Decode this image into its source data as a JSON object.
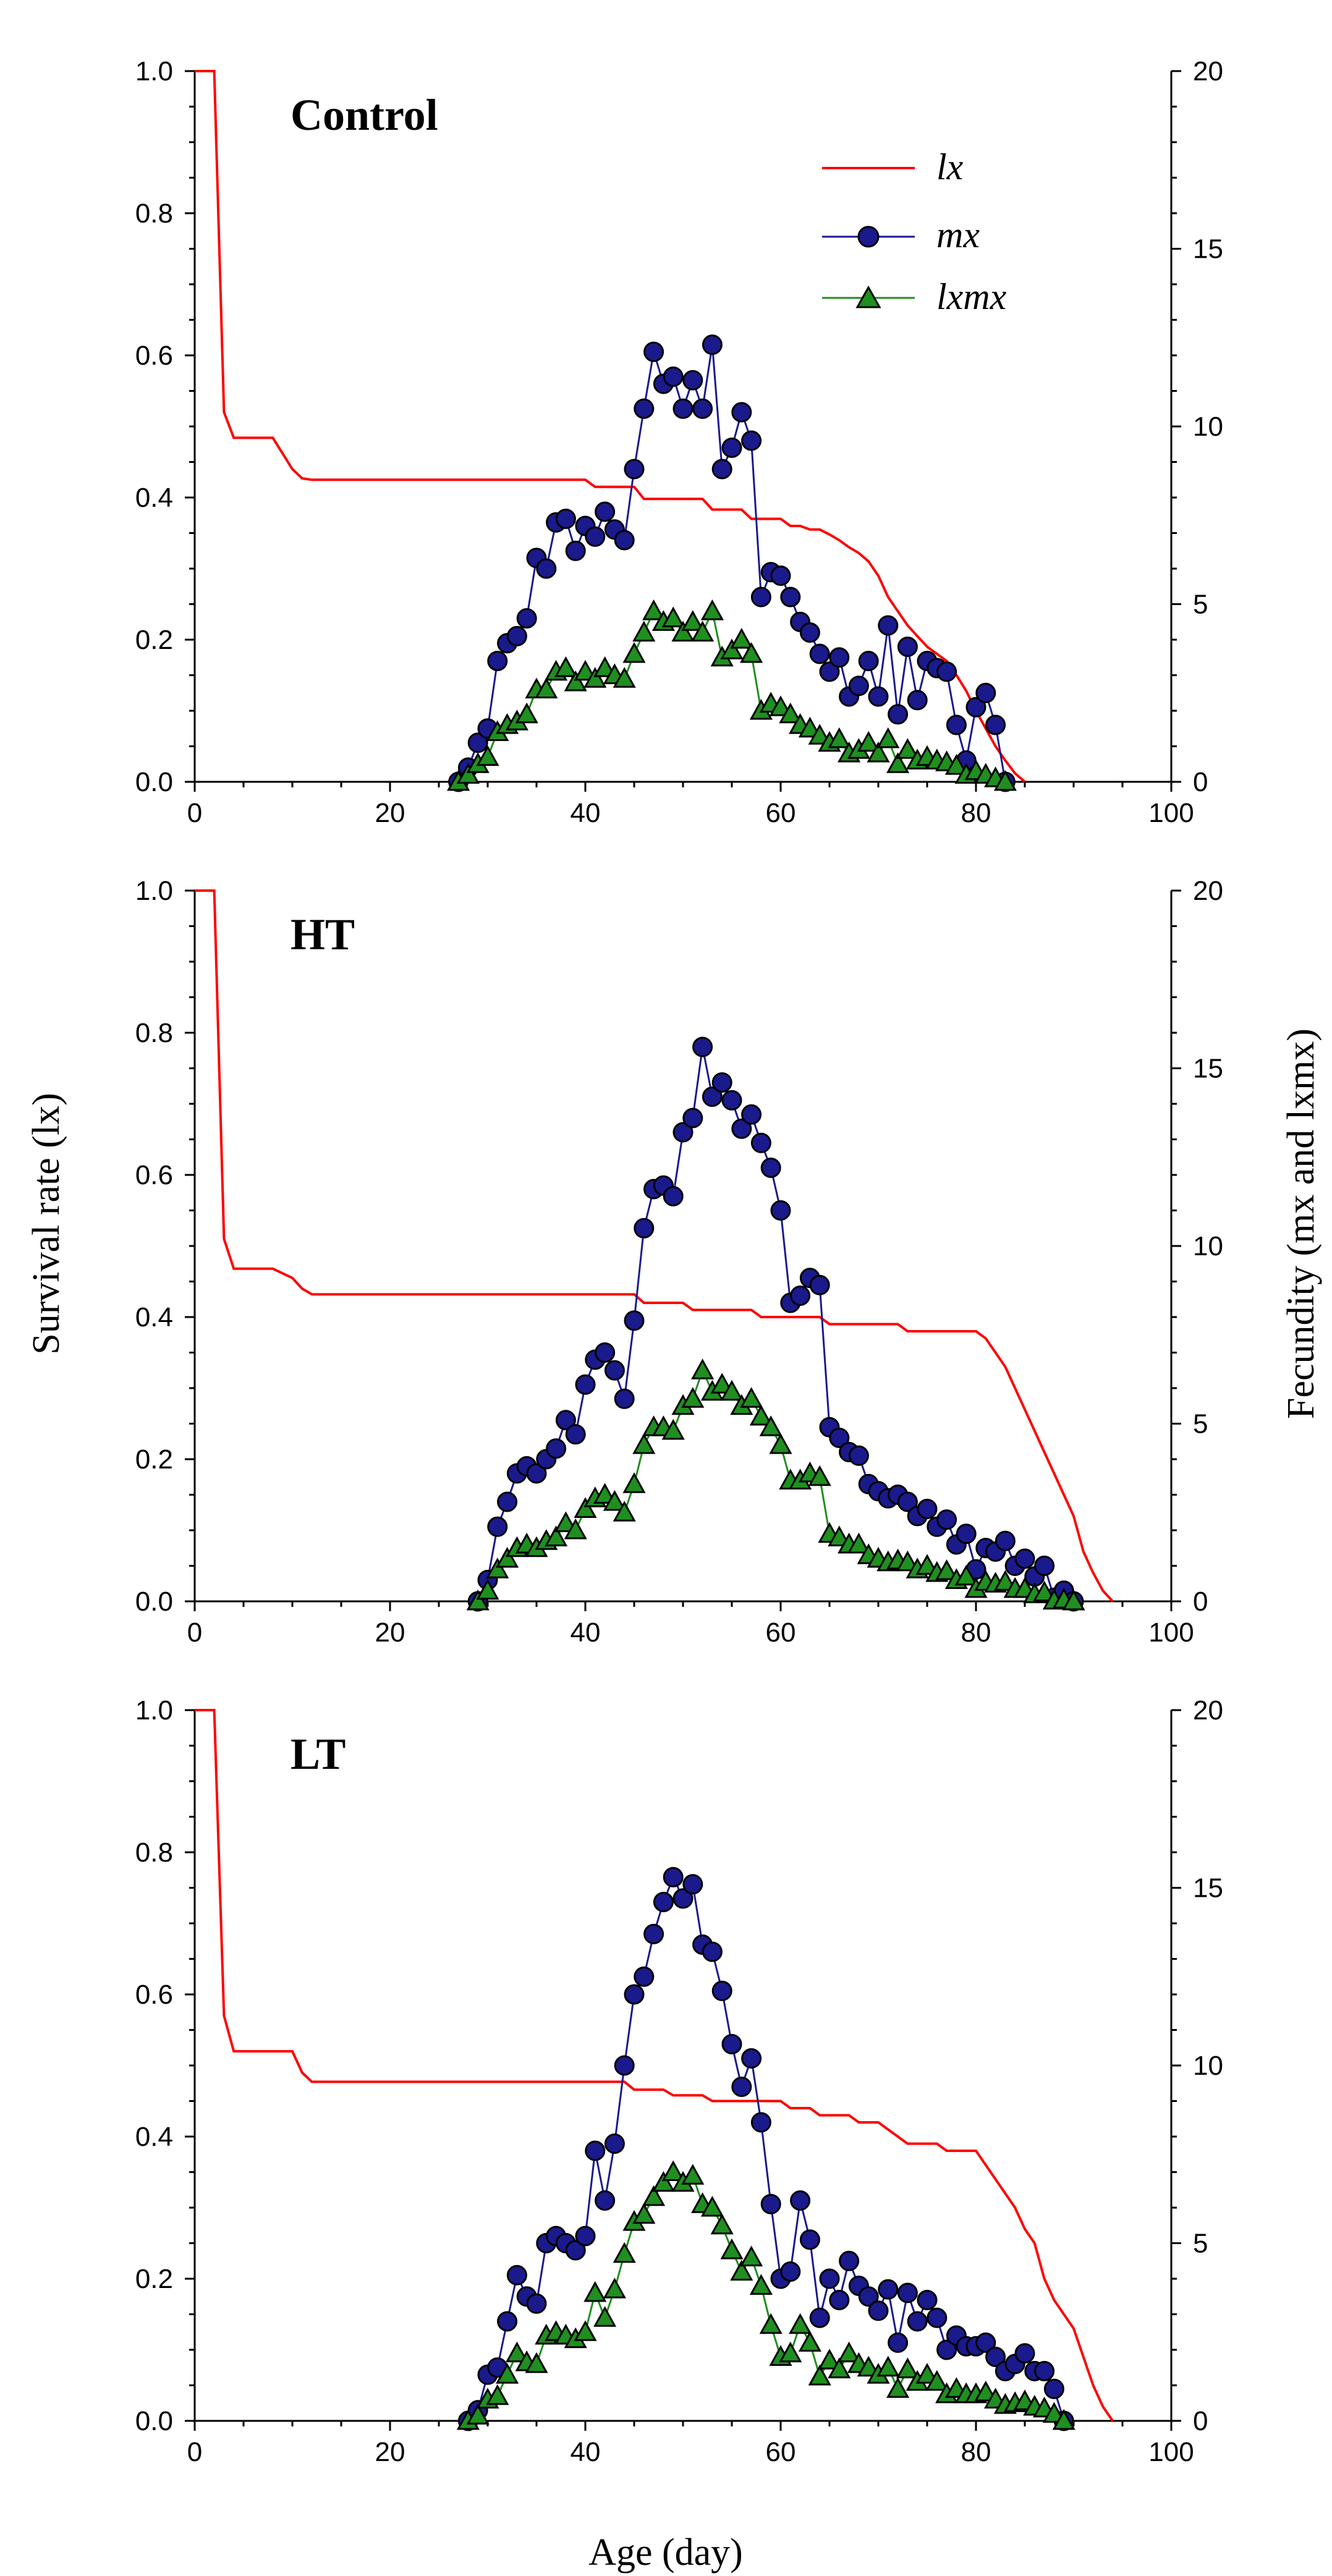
{
  "colors": {
    "lx": "#ff0000",
    "mx": "#1a1a8c",
    "lxmx": "#1f8f1f",
    "marker_edge": "#000000"
  },
  "axis_titles": {
    "x": "Age (day)",
    "y_left": "Survival rate (lx)",
    "y_right": "Fecundity (mx and lxmx)"
  },
  "legend": {
    "lx": "lx",
    "mx": "mx",
    "lxmx": "lxmx",
    "placement": "top-right of Control panel"
  },
  "chart_data": [
    {
      "type": "line",
      "title": "Control",
      "xlim": [
        0,
        100
      ],
      "xticks": [
        0,
        20,
        40,
        60,
        80,
        100
      ],
      "ylim_left": [
        0,
        1.0
      ],
      "yticks_left": [
        "0.0",
        "0.2",
        "0.4",
        "0.6",
        "0.8",
        "1.0"
      ],
      "ylim_right": [
        0,
        20
      ],
      "yticks_right": [
        "0",
        "5",
        "10",
        "15",
        "20"
      ],
      "lx": {
        "x": [
          0,
          2,
          3,
          4,
          8,
          10,
          11,
          12,
          40,
          41,
          45,
          46,
          52,
          53,
          56,
          57,
          60,
          61,
          62,
          63,
          64,
          65,
          66,
          67,
          68,
          69,
          70,
          71,
          72,
          73,
          74,
          75,
          76,
          77,
          78,
          79,
          80,
          81,
          82,
          83,
          84,
          85
        ],
        "y": [
          1.0,
          1.0,
          0.52,
          0.484,
          0.484,
          0.44,
          0.427,
          0.425,
          0.425,
          0.415,
          0.415,
          0.398,
          0.398,
          0.383,
          0.383,
          0.37,
          0.37,
          0.36,
          0.36,
          0.355,
          0.355,
          0.348,
          0.34,
          0.33,
          0.322,
          0.31,
          0.29,
          0.26,
          0.24,
          0.22,
          0.205,
          0.19,
          0.18,
          0.17,
          0.15,
          0.128,
          0.1,
          0.075,
          0.05,
          0.03,
          0.012,
          0.0
        ]
      },
      "mx": {
        "x": [
          27,
          28,
          29,
          30,
          31,
          32,
          33,
          34,
          35,
          36,
          37,
          38,
          39,
          40,
          41,
          42,
          43,
          44,
          45,
          46,
          47,
          48,
          49,
          50,
          51,
          52,
          53,
          54,
          55,
          56,
          57,
          58,
          59,
          60,
          61,
          62,
          63,
          64,
          65,
          66,
          67,
          68,
          69,
          70,
          71,
          72,
          73,
          74,
          75,
          76,
          77,
          78,
          79,
          80,
          81,
          82,
          83
        ],
        "y": [
          0,
          0.4,
          1.1,
          1.5,
          3.4,
          3.9,
          4.1,
          4.6,
          6.3,
          6.0,
          7.3,
          7.4,
          6.5,
          7.2,
          6.9,
          7.6,
          7.1,
          6.8,
          8.8,
          10.5,
          12.1,
          11.2,
          11.4,
          10.5,
          11.3,
          10.5,
          12.3,
          8.8,
          9.4,
          10.4,
          9.6,
          5.2,
          5.9,
          5.8,
          5.2,
          4.5,
          4.2,
          3.6,
          3.1,
          3.5,
          2.4,
          2.7,
          3.4,
          2.4,
          4.4,
          1.9,
          3.8,
          2.3,
          3.4,
          3.2,
          3.1,
          1.6,
          0.6,
          2.1,
          2.5,
          1.6,
          0
        ]
      },
      "lxmx": {
        "x": [
          27,
          28,
          29,
          30,
          31,
          32,
          33,
          34,
          35,
          36,
          37,
          38,
          39,
          40,
          41,
          42,
          43,
          44,
          45,
          46,
          47,
          48,
          49,
          50,
          51,
          52,
          53,
          54,
          55,
          56,
          57,
          58,
          59,
          60,
          61,
          62,
          63,
          64,
          65,
          66,
          67,
          68,
          69,
          70,
          71,
          72,
          73,
          74,
          75,
          76,
          77,
          78,
          79,
          80,
          81,
          82,
          83
        ],
        "y": [
          0,
          0.2,
          0.5,
          0.7,
          1.4,
          1.6,
          1.7,
          1.9,
          2.6,
          2.6,
          3.1,
          3.2,
          2.8,
          3.1,
          2.9,
          3.2,
          3.0,
          2.9,
          3.6,
          4.2,
          4.8,
          4.5,
          4.6,
          4.2,
          4.5,
          4.2,
          4.8,
          3.5,
          3.7,
          4.0,
          3.6,
          2.0,
          2.2,
          2.1,
          1.9,
          1.6,
          1.5,
          1.3,
          1.1,
          1.2,
          0.8,
          0.9,
          1.1,
          0.8,
          1.2,
          0.5,
          0.9,
          0.6,
          0.7,
          0.6,
          0.55,
          0.45,
          0.2,
          0.3,
          0.2,
          0.1,
          0
        ]
      }
    },
    {
      "type": "line",
      "title": "HT",
      "xlim": [
        0,
        100
      ],
      "xticks": [
        0,
        20,
        40,
        60,
        80,
        100
      ],
      "ylim_left": [
        0,
        1.0
      ],
      "yticks_left": [
        "0.0",
        "0.2",
        "0.4",
        "0.6",
        "0.8",
        "1.0"
      ],
      "ylim_right": [
        0,
        20
      ],
      "yticks_right": [
        "0",
        "5",
        "10",
        "15",
        "20"
      ],
      "lx": {
        "x": [
          0,
          2,
          3,
          4,
          8,
          10,
          11,
          12,
          45,
          46,
          50,
          51,
          57,
          58,
          64,
          65,
          72,
          73,
          80,
          81,
          82,
          83,
          84,
          85,
          86,
          87,
          88,
          89,
          90,
          91,
          92,
          93,
          94
        ],
        "y": [
          1.0,
          1.0,
          0.51,
          0.468,
          0.468,
          0.455,
          0.44,
          0.432,
          0.432,
          0.42,
          0.42,
          0.41,
          0.41,
          0.4,
          0.4,
          0.39,
          0.39,
          0.38,
          0.38,
          0.37,
          0.35,
          0.33,
          0.3,
          0.27,
          0.24,
          0.21,
          0.18,
          0.15,
          0.12,
          0.07,
          0.04,
          0.015,
          0
        ]
      },
      "mx": {
        "x": [
          29,
          30,
          31,
          32,
          33,
          34,
          35,
          36,
          37,
          38,
          39,
          40,
          41,
          42,
          43,
          44,
          45,
          46,
          47,
          48,
          49,
          50,
          51,
          52,
          53,
          54,
          55,
          56,
          57,
          58,
          59,
          60,
          61,
          62,
          63,
          64,
          65,
          66,
          67,
          68,
          69,
          70,
          71,
          72,
          73,
          74,
          75,
          76,
          77,
          78,
          79,
          80,
          81,
          82,
          83,
          84,
          85,
          86,
          87,
          88,
          89,
          90
        ],
        "y": [
          0,
          0.6,
          2.1,
          2.8,
          3.6,
          3.8,
          3.6,
          4.0,
          4.3,
          5.1,
          4.7,
          6.1,
          6.8,
          7.0,
          6.5,
          5.7,
          7.9,
          10.5,
          11.6,
          11.7,
          11.4,
          13.2,
          13.6,
          15.6,
          14.2,
          14.6,
          14.1,
          13.3,
          13.7,
          12.9,
          12.2,
          11.0,
          8.4,
          8.6,
          9.1,
          8.9,
          4.9,
          4.6,
          4.2,
          4.1,
          3.3,
          3.1,
          2.9,
          3.0,
          2.8,
          2.4,
          2.6,
          2.1,
          2.3,
          1.6,
          1.9,
          0.9,
          1.5,
          1.4,
          1.7,
          1.0,
          1.2,
          0.7,
          1.0,
          0.1,
          0.3,
          0
        ]
      },
      "lxmx": {
        "x": [
          29,
          30,
          31,
          32,
          33,
          34,
          35,
          36,
          37,
          38,
          39,
          40,
          41,
          42,
          43,
          44,
          45,
          46,
          47,
          48,
          49,
          50,
          51,
          52,
          53,
          54,
          55,
          56,
          57,
          58,
          59,
          60,
          61,
          62,
          63,
          64,
          65,
          66,
          67,
          68,
          69,
          70,
          71,
          72,
          73,
          74,
          75,
          76,
          77,
          78,
          79,
          80,
          81,
          82,
          83,
          84,
          85,
          86,
          87,
          88,
          89,
          90
        ],
        "y": [
          0,
          0.3,
          0.9,
          1.2,
          1.5,
          1.6,
          1.5,
          1.7,
          1.8,
          2.2,
          2.0,
          2.6,
          2.9,
          3.0,
          2.8,
          2.5,
          3.3,
          4.4,
          4.9,
          4.9,
          4.8,
          5.5,
          5.7,
          6.5,
          5.9,
          6.1,
          5.9,
          5.5,
          5.7,
          5.2,
          4.9,
          4.4,
          3.4,
          3.4,
          3.6,
          3.5,
          1.9,
          1.8,
          1.6,
          1.6,
          1.3,
          1.2,
          1.1,
          1.15,
          1.1,
          0.9,
          1.0,
          0.8,
          0.85,
          0.6,
          0.7,
          0.35,
          0.55,
          0.5,
          0.55,
          0.35,
          0.35,
          0.2,
          0.25,
          0.02,
          0.05,
          0
        ]
      }
    },
    {
      "type": "line",
      "title": "LT",
      "xlim": [
        0,
        100
      ],
      "xticks": [
        0,
        20,
        40,
        60,
        80,
        100
      ],
      "ylim_left": [
        0,
        1.0
      ],
      "yticks_left": [
        "0.0",
        "0.2",
        "0.4",
        "0.6",
        "0.8",
        "1.0"
      ],
      "ylim_right": [
        0,
        20
      ],
      "yticks_right": [
        "0",
        "5",
        "10",
        "15",
        "20"
      ],
      "lx": {
        "x": [
          0,
          2,
          3,
          4,
          10,
          11,
          12,
          44,
          45,
          48,
          49,
          52,
          53,
          60,
          61,
          63,
          64,
          67,
          68,
          70,
          71,
          72,
          73,
          76,
          77,
          80,
          81,
          82,
          83,
          84,
          85,
          86,
          87,
          88,
          89,
          90,
          91,
          92,
          93,
          94
        ],
        "y": [
          1.0,
          1.0,
          0.57,
          0.52,
          0.52,
          0.49,
          0.477,
          0.477,
          0.466,
          0.466,
          0.458,
          0.458,
          0.45,
          0.45,
          0.44,
          0.44,
          0.43,
          0.43,
          0.42,
          0.42,
          0.41,
          0.4,
          0.39,
          0.39,
          0.38,
          0.38,
          0.36,
          0.34,
          0.32,
          0.3,
          0.27,
          0.25,
          0.2,
          0.17,
          0.15,
          0.13,
          0.09,
          0.05,
          0.02,
          0
        ]
      },
      "mx": {
        "x": [
          28,
          29,
          30,
          31,
          32,
          33,
          34,
          35,
          36,
          37,
          38,
          39,
          40,
          41,
          42,
          43,
          44,
          45,
          46,
          47,
          48,
          49,
          50,
          51,
          52,
          53,
          54,
          55,
          56,
          57,
          58,
          59,
          60,
          61,
          62,
          63,
          64,
          65,
          66,
          67,
          68,
          69,
          70,
          71,
          72,
          73,
          74,
          75,
          76,
          77,
          78,
          79,
          80,
          81,
          82,
          83,
          84,
          85,
          86,
          87,
          88,
          89
        ],
        "y": [
          0,
          0.3,
          1.3,
          1.5,
          2.8,
          4.1,
          3.5,
          3.3,
          5.0,
          5.2,
          5.0,
          4.8,
          5.2,
          7.6,
          6.2,
          7.8,
          10.0,
          12.0,
          12.5,
          13.7,
          14.6,
          15.3,
          14.7,
          15.1,
          13.4,
          13.2,
          12.1,
          10.6,
          9.4,
          10.2,
          8.4,
          6.1,
          4.0,
          4.2,
          6.2,
          5.1,
          2.9,
          4.0,
          3.4,
          4.5,
          3.8,
          3.5,
          3.1,
          3.7,
          2.2,
          3.6,
          2.8,
          3.4,
          2.9,
          2.0,
          2.4,
          2.1,
          2.1,
          2.2,
          1.8,
          1.4,
          1.6,
          1.9,
          1.4,
          1.4,
          0.9,
          0
        ]
      },
      "lxmx": {
        "x": [
          28,
          29,
          30,
          31,
          32,
          33,
          34,
          35,
          36,
          37,
          38,
          39,
          40,
          41,
          42,
          43,
          44,
          45,
          46,
          47,
          48,
          49,
          50,
          51,
          52,
          53,
          54,
          55,
          56,
          57,
          58,
          59,
          60,
          61,
          62,
          63,
          64,
          65,
          66,
          67,
          68,
          69,
          70,
          71,
          72,
          73,
          74,
          75,
          76,
          77,
          78,
          79,
          80,
          81,
          82,
          83,
          84,
          85,
          86,
          87,
          88,
          89
        ],
        "y": [
          0,
          0.15,
          0.6,
          0.7,
          1.3,
          1.9,
          1.65,
          1.6,
          2.4,
          2.5,
          2.4,
          2.3,
          2.5,
          3.6,
          2.9,
          3.7,
          4.7,
          5.6,
          5.8,
          6.3,
          6.7,
          7.0,
          6.7,
          6.9,
          6.1,
          6.0,
          5.5,
          4.8,
          4.2,
          4.6,
          3.8,
          2.7,
          1.8,
          1.9,
          2.7,
          2.2,
          1.25,
          1.7,
          1.45,
          1.9,
          1.6,
          1.5,
          1.3,
          1.5,
          0.9,
          1.45,
          1.1,
          1.3,
          1.1,
          0.75,
          0.9,
          0.75,
          0.75,
          0.8,
          0.6,
          0.45,
          0.5,
          0.55,
          0.4,
          0.35,
          0.2,
          0
        ]
      }
    }
  ]
}
